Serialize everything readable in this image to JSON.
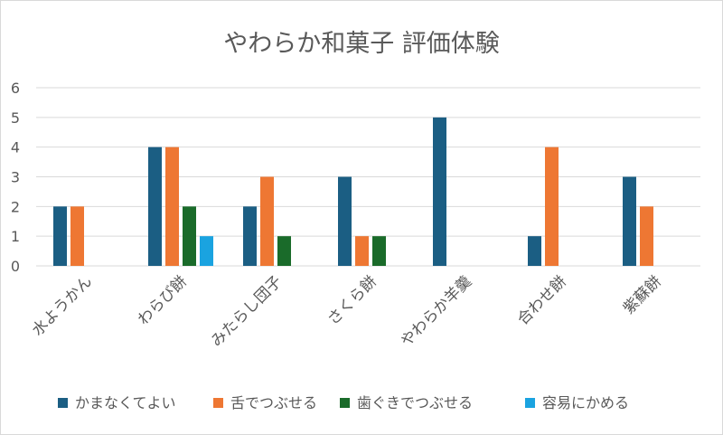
{
  "chart_data": {
    "type": "bar",
    "title": "やわらか和菓子 評価体験",
    "categories": [
      "水ようかん",
      "わらび餅",
      "みたらし団子",
      "さくら餅",
      "やわらか羊羹",
      "合わせ餅",
      "紫蘇餅"
    ],
    "series": [
      {
        "name": "かまなくてよい",
        "color": "#1b5e83",
        "values": [
          2,
          4,
          2,
          3,
          5,
          1,
          3
        ]
      },
      {
        "name": "舌でつぶせる",
        "color": "#ee7733",
        "values": [
          2,
          4,
          3,
          1,
          0,
          4,
          2
        ]
      },
      {
        "name": "歯ぐきでつぶせる",
        "color": "#1a6b2a",
        "values": [
          0,
          2,
          1,
          1,
          0,
          0,
          0
        ]
      },
      {
        "name": "容易にかめる",
        "color": "#1aa3e0",
        "values": [
          0,
          1,
          0,
          0,
          0,
          0,
          0
        ]
      }
    ],
    "yticks": [
      "0",
      "1",
      "2",
      "3",
      "4",
      "5",
      "6"
    ],
    "ylim": [
      0,
      6
    ],
    "grid": true,
    "legend": "bottom",
    "xlabel": "",
    "ylabel": ""
  }
}
